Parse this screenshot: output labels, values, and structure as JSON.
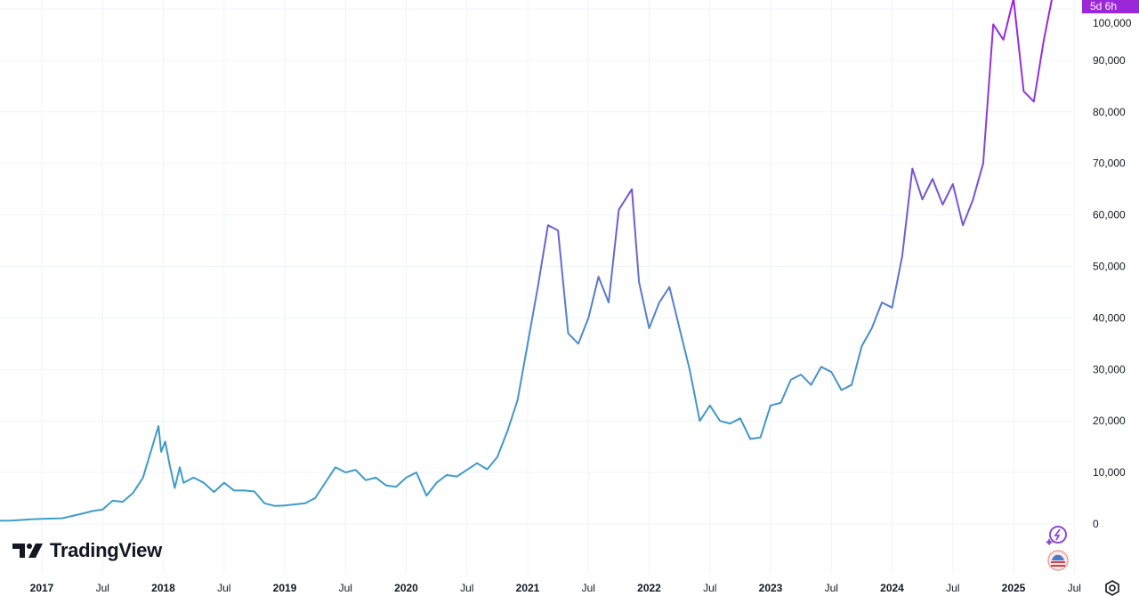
{
  "chart_data": {
    "type": "line",
    "title": "",
    "xlabel": "",
    "ylabel": "",
    "ylim": [
      -5000,
      102000
    ],
    "grid": true,
    "line_colors": {
      "low": "#3aa0c8",
      "high": "#a020e0"
    },
    "y_ticks": [
      "0",
      "10,000",
      "20,000",
      "30,000",
      "40,000",
      "50,000",
      "60,000",
      "70,000",
      "80,000",
      "90,000",
      "100,000"
    ],
    "x_ticks": [
      {
        "label": "2017",
        "date": "2017-01",
        "year": true
      },
      {
        "label": "Jul",
        "date": "2017-07",
        "year": false
      },
      {
        "label": "2018",
        "date": "2018-01",
        "year": true
      },
      {
        "label": "Jul",
        "date": "2018-07",
        "year": false
      },
      {
        "label": "2019",
        "date": "2019-01",
        "year": true
      },
      {
        "label": "Jul",
        "date": "2019-07",
        "year": false
      },
      {
        "label": "2020",
        "date": "2020-01",
        "year": true
      },
      {
        "label": "Jul",
        "date": "2020-07",
        "year": false
      },
      {
        "label": "2021",
        "date": "2021-01",
        "year": true
      },
      {
        "label": "Jul",
        "date": "2021-07",
        "year": false
      },
      {
        "label": "2022",
        "date": "2022-01",
        "year": true
      },
      {
        "label": "Jul",
        "date": "2022-07",
        "year": false
      },
      {
        "label": "2023",
        "date": "2023-01",
        "year": true
      },
      {
        "label": "Jul",
        "date": "2023-07",
        "year": false
      },
      {
        "label": "2024",
        "date": "2024-01",
        "year": true
      },
      {
        "label": "Jul",
        "date": "2024-07",
        "year": false
      },
      {
        "label": "2025",
        "date": "2025-01",
        "year": true
      },
      {
        "label": "Jul",
        "date": "2025-07",
        "year": false
      }
    ],
    "series": [
      {
        "x": [
          "2016-08",
          "2016-10",
          "2016-12",
          "2017-01",
          "2017-03",
          "2017-05",
          "2017-06",
          "2017-07",
          "2017-08",
          "2017-09",
          "2017-10",
          "2017-11",
          "2017-12-17",
          "2017-12-25",
          "2018-01-07",
          "2018-01-20",
          "2018-02-05",
          "2018-02-20",
          "2018-03",
          "2018-04",
          "2018-05",
          "2018-06",
          "2018-07",
          "2018-08",
          "2018-09",
          "2018-10",
          "2018-11",
          "2018-12",
          "2019-01",
          "2019-02",
          "2019-03",
          "2019-04",
          "2019-05",
          "2019-06",
          "2019-07",
          "2019-08",
          "2019-09",
          "2019-10",
          "2019-11",
          "2019-12",
          "2020-01",
          "2020-02",
          "2020-03",
          "2020-04",
          "2020-05",
          "2020-06",
          "2020-07",
          "2020-08",
          "2020-09",
          "2020-10",
          "2020-11",
          "2020-12",
          "2021-01",
          "2021-02",
          "2021-03",
          "2021-04",
          "2021-05",
          "2021-06",
          "2021-07",
          "2021-08",
          "2021-09",
          "2021-10",
          "2021-11-10",
          "2021-12",
          "2022-01",
          "2022-02",
          "2022-03",
          "2022-04",
          "2022-05",
          "2022-06",
          "2022-07",
          "2022-08",
          "2022-09",
          "2022-10",
          "2022-11",
          "2022-12",
          "2023-01",
          "2023-02",
          "2023-03",
          "2023-04",
          "2023-05",
          "2023-06",
          "2023-07",
          "2023-08",
          "2023-09",
          "2023-10",
          "2023-11",
          "2023-12",
          "2024-01",
          "2024-02",
          "2024-03",
          "2024-04",
          "2024-05",
          "2024-06",
          "2024-07",
          "2024-08",
          "2024-09",
          "2024-10",
          "2024-11",
          "2024-12",
          "2025-01",
          "2025-02",
          "2025-03",
          "2025-04",
          "2025-05"
        ],
        "values": [
          600,
          650,
          900,
          1000,
          1100,
          2000,
          2500,
          2800,
          4500,
          4300,
          6000,
          9000,
          19000,
          14000,
          16000,
          11500,
          7000,
          11000,
          8000,
          9000,
          8000,
          6200,
          8000,
          6500,
          6500,
          6300,
          4000,
          3500,
          3600,
          3800,
          4000,
          5000,
          8000,
          11000,
          10000,
          10500,
          8500,
          9000,
          7500,
          7200,
          9000,
          10000,
          5500,
          8000,
          9500,
          9200,
          10500,
          11800,
          10600,
          13000,
          18000,
          24000,
          35000,
          46000,
          58000,
          57000,
          37000,
          35000,
          40000,
          48000,
          43000,
          61000,
          65000,
          47000,
          38000,
          43000,
          46000,
          38000,
          30000,
          20000,
          23000,
          20000,
          19500,
          20500,
          16500,
          16800,
          23000,
          23500,
          28000,
          29000,
          27000,
          30500,
          29500,
          26000,
          27000,
          34500,
          38000,
          43000,
          42000,
          52000,
          69000,
          63000,
          67000,
          62000,
          66000,
          58000,
          63000,
          70000,
          97000,
          94000,
          102000,
          84000,
          82000,
          94000,
          104000
        ]
      }
    ]
  },
  "price_badge": "5d 6h",
  "logo": {
    "text": "TradingView"
  },
  "icons": {
    "alert": "lightning-sparkle-icon",
    "region": "us-flag-icon",
    "settings": "settings-gear-icon"
  }
}
